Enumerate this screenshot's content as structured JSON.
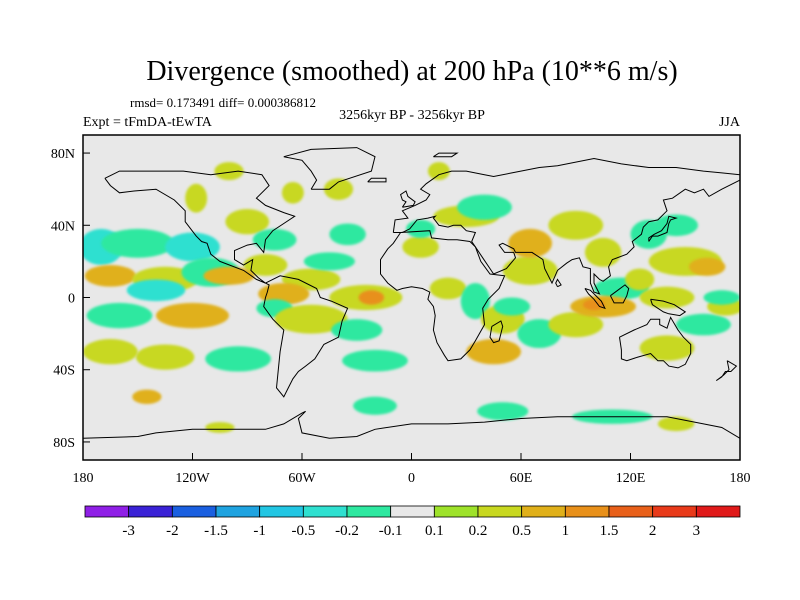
{
  "chart_data": {
    "type": "heatmap",
    "title": "Divergence (smoothed) at 200 hPa (10**6 m/s)",
    "stats": "rmsd= 0.173491 diff= 0.000386812",
    "experiment": "Expt = tFmDA-tEwTA",
    "period": "3256kyr BP - 3256kyr BP",
    "season": "JJA",
    "lon_range": [
      -180,
      180
    ],
    "lat_range": [
      -90,
      90
    ],
    "x_ticks": [
      {
        "lon": -180,
        "label": "180"
      },
      {
        "lon": -120,
        "label": "120W"
      },
      {
        "lon": -60,
        "label": "60W"
      },
      {
        "lon": 0,
        "label": "0"
      },
      {
        "lon": 60,
        "label": "60E"
      },
      {
        "lon": 120,
        "label": "120E"
      },
      {
        "lon": 180,
        "label": "180"
      }
    ],
    "y_ticks": [
      {
        "lat": 80,
        "label": "80N"
      },
      {
        "lat": 40,
        "label": "40N"
      },
      {
        "lat": 0,
        "label": "0"
      },
      {
        "lat": -40,
        "label": "40S"
      },
      {
        "lat": -80,
        "label": "80S"
      }
    ],
    "colorbar": {
      "levels": [
        "-3",
        "-2",
        "-1.5",
        "-1",
        "-0.5",
        "-0.2",
        "-0.1",
        "0.1",
        "0.2",
        "0.5",
        "1",
        "1.5",
        "2",
        "3"
      ],
      "colors": [
        "#8f1fe6",
        "#3a22d6",
        "#1a5fe0",
        "#1fa3e0",
        "#22c6e3",
        "#2fe0d0",
        "#2ee8a0",
        "#e8e8e8",
        "#9ee22a",
        "#c8d820",
        "#e0b01a",
        "#e8901a",
        "#e8601a",
        "#e83a1a",
        "#e01a1a"
      ]
    },
    "anomaly_regions": [
      {
        "lon": -170,
        "lat": 28,
        "rlon": 12,
        "rlat": 10,
        "value": -0.5
      },
      {
        "lon": -150,
        "lat": 30,
        "rlon": 20,
        "rlat": 8,
        "value": -0.2
      },
      {
        "lon": -120,
        "lat": 28,
        "rlon": 15,
        "rlat": 8,
        "value": -0.5
      },
      {
        "lon": -165,
        "lat": 12,
        "rlon": 14,
        "rlat": 6,
        "value": 0.5
      },
      {
        "lon": -135,
        "lat": 10,
        "rlon": 18,
        "rlat": 7,
        "value": 0.2
      },
      {
        "lon": -140,
        "lat": 4,
        "rlon": 16,
        "rlat": 6,
        "value": -0.5
      },
      {
        "lon": -110,
        "lat": 14,
        "rlon": 16,
        "rlat": 8,
        "value": -0.2
      },
      {
        "lon": -160,
        "lat": -10,
        "rlon": 18,
        "rlat": 7,
        "value": -0.2
      },
      {
        "lon": -120,
        "lat": -10,
        "rlon": 20,
        "rlat": 7,
        "value": 0.5
      },
      {
        "lon": -165,
        "lat": -30,
        "rlon": 15,
        "rlat": 7,
        "value": 0.2
      },
      {
        "lon": -135,
        "lat": -33,
        "rlon": 16,
        "rlat": 7,
        "value": 0.2
      },
      {
        "lon": -95,
        "lat": -34,
        "rlon": 18,
        "rlat": 7,
        "value": -0.2
      },
      {
        "lon": -118,
        "lat": 55,
        "rlon": 6,
        "rlat": 8,
        "value": 0.2
      },
      {
        "lon": -90,
        "lat": 42,
        "rlon": 12,
        "rlat": 7,
        "value": 0.2
      },
      {
        "lon": -75,
        "lat": 32,
        "rlon": 12,
        "rlat": 6,
        "value": -0.2
      },
      {
        "lon": -80,
        "lat": 18,
        "rlon": 12,
        "rlat": 6,
        "value": 0.2
      },
      {
        "lon": -100,
        "lat": 12,
        "rlon": 14,
        "rlat": 5,
        "value": 0.5
      },
      {
        "lon": -55,
        "lat": 10,
        "rlon": 16,
        "rlat": 6,
        "value": 0.2
      },
      {
        "lon": -45,
        "lat": 20,
        "rlon": 14,
        "rlat": 5,
        "value": -0.2
      },
      {
        "lon": -70,
        "lat": 2,
        "rlon": 14,
        "rlat": 6,
        "value": 0.5
      },
      {
        "lon": -75,
        "lat": -6,
        "rlon": 10,
        "rlat": 5,
        "value": -0.2
      },
      {
        "lon": -25,
        "lat": 0,
        "rlon": 20,
        "rlat": 7,
        "value": 0.2
      },
      {
        "lon": -22,
        "lat": 0,
        "rlon": 7,
        "rlat": 4,
        "value": 1
      },
      {
        "lon": -55,
        "lat": -12,
        "rlon": 20,
        "rlat": 8,
        "value": 0.2
      },
      {
        "lon": -30,
        "lat": -18,
        "rlon": 14,
        "rlat": 6,
        "value": -0.2
      },
      {
        "lon": -20,
        "lat": -35,
        "rlon": 18,
        "rlat": 6,
        "value": -0.2
      },
      {
        "lon": -40,
        "lat": 60,
        "rlon": 8,
        "rlat": 6,
        "value": 0.2
      },
      {
        "lon": -35,
        "lat": 35,
        "rlon": 10,
        "rlat": 6,
        "value": -0.2
      },
      {
        "lon": -65,
        "lat": 58,
        "rlon": 6,
        "rlat": 6,
        "value": 0.2
      },
      {
        "lon": -100,
        "lat": 70,
        "rlon": 8,
        "rlat": 5,
        "value": 0.2
      },
      {
        "lon": 5,
        "lat": 28,
        "rlon": 10,
        "rlat": 6,
        "value": 0.2
      },
      {
        "lon": 5,
        "lat": 38,
        "rlon": 8,
        "rlat": 5,
        "value": -0.2
      },
      {
        "lon": 30,
        "lat": 45,
        "rlon": 18,
        "rlat": 6,
        "value": 0.2
      },
      {
        "lon": 40,
        "lat": 50,
        "rlon": 15,
        "rlat": 7,
        "value": -0.2
      },
      {
        "lon": 20,
        "lat": 5,
        "rlon": 10,
        "rlat": 6,
        "value": 0.2
      },
      {
        "lon": 35,
        "lat": -2,
        "rlon": 8,
        "rlat": 10,
        "value": -0.2
      },
      {
        "lon": 50,
        "lat": -12,
        "rlon": 12,
        "rlat": 8,
        "value": 0.2
      },
      {
        "lon": 45,
        "lat": -30,
        "rlon": 15,
        "rlat": 7,
        "value": 0.5
      },
      {
        "lon": 65,
        "lat": 15,
        "rlon": 15,
        "rlat": 8,
        "value": 0.2
      },
      {
        "lon": 65,
        "lat": 30,
        "rlon": 12,
        "rlat": 8,
        "value": 0.5
      },
      {
        "lon": 70,
        "lat": -20,
        "rlon": 12,
        "rlat": 8,
        "value": -0.2
      },
      {
        "lon": 55,
        "lat": -5,
        "rlon": 10,
        "rlat": 5,
        "value": -0.2
      },
      {
        "lon": 90,
        "lat": -15,
        "rlon": 15,
        "rlat": 7,
        "value": 0.2
      },
      {
        "lon": 90,
        "lat": 40,
        "rlon": 15,
        "rlat": 8,
        "value": 0.2
      },
      {
        "lon": 105,
        "lat": 25,
        "rlon": 10,
        "rlat": 8,
        "value": 0.2
      },
      {
        "lon": 115,
        "lat": 5,
        "rlon": 15,
        "rlat": 6,
        "value": -0.2
      },
      {
        "lon": 105,
        "lat": -5,
        "rlon": 18,
        "rlat": 6,
        "value": 0.5
      },
      {
        "lon": 100,
        "lat": -4,
        "rlon": 6,
        "rlat": 3,
        "value": 1
      },
      {
        "lon": 125,
        "lat": 10,
        "rlon": 8,
        "rlat": 6,
        "value": 0.2
      },
      {
        "lon": 130,
        "lat": 35,
        "rlon": 10,
        "rlat": 8,
        "value": -0.2
      },
      {
        "lon": 150,
        "lat": 20,
        "rlon": 20,
        "rlat": 8,
        "value": 0.2
      },
      {
        "lon": 162,
        "lat": 17,
        "rlon": 10,
        "rlat": 5,
        "value": 0.5
      },
      {
        "lon": 145,
        "lat": 40,
        "rlon": 12,
        "rlat": 6,
        "value": -0.2
      },
      {
        "lon": 140,
        "lat": 0,
        "rlon": 15,
        "rlat": 6,
        "value": 0.2
      },
      {
        "lon": 160,
        "lat": -15,
        "rlon": 15,
        "rlat": 6,
        "value": -0.2
      },
      {
        "lon": 140,
        "lat": -28,
        "rlon": 15,
        "rlat": 7,
        "value": 0.2
      },
      {
        "lon": 172,
        "lat": -5,
        "rlon": 10,
        "rlat": 5,
        "value": 0.2
      },
      {
        "lon": 170,
        "lat": 0,
        "rlon": 10,
        "rlat": 4,
        "value": -0.2
      },
      {
        "lon": 15,
        "lat": 70,
        "rlon": 6,
        "rlat": 5,
        "value": 0.2
      },
      {
        "lon": -145,
        "lat": -55,
        "rlon": 8,
        "rlat": 4,
        "value": 0.5
      },
      {
        "lon": -20,
        "lat": -60,
        "rlon": 12,
        "rlat": 5,
        "value": -0.2
      },
      {
        "lon": 50,
        "lat": -63,
        "rlon": 14,
        "rlat": 5,
        "value": -0.2
      },
      {
        "lon": 110,
        "lat": -66,
        "rlon": 22,
        "rlat": 4,
        "value": -0.2
      },
      {
        "lon": 145,
        "lat": -70,
        "rlon": 10,
        "rlat": 4,
        "value": 0.2
      },
      {
        "lon": -105,
        "lat": -72,
        "rlon": 8,
        "rlat": 3,
        "value": 0.2
      }
    ]
  }
}
